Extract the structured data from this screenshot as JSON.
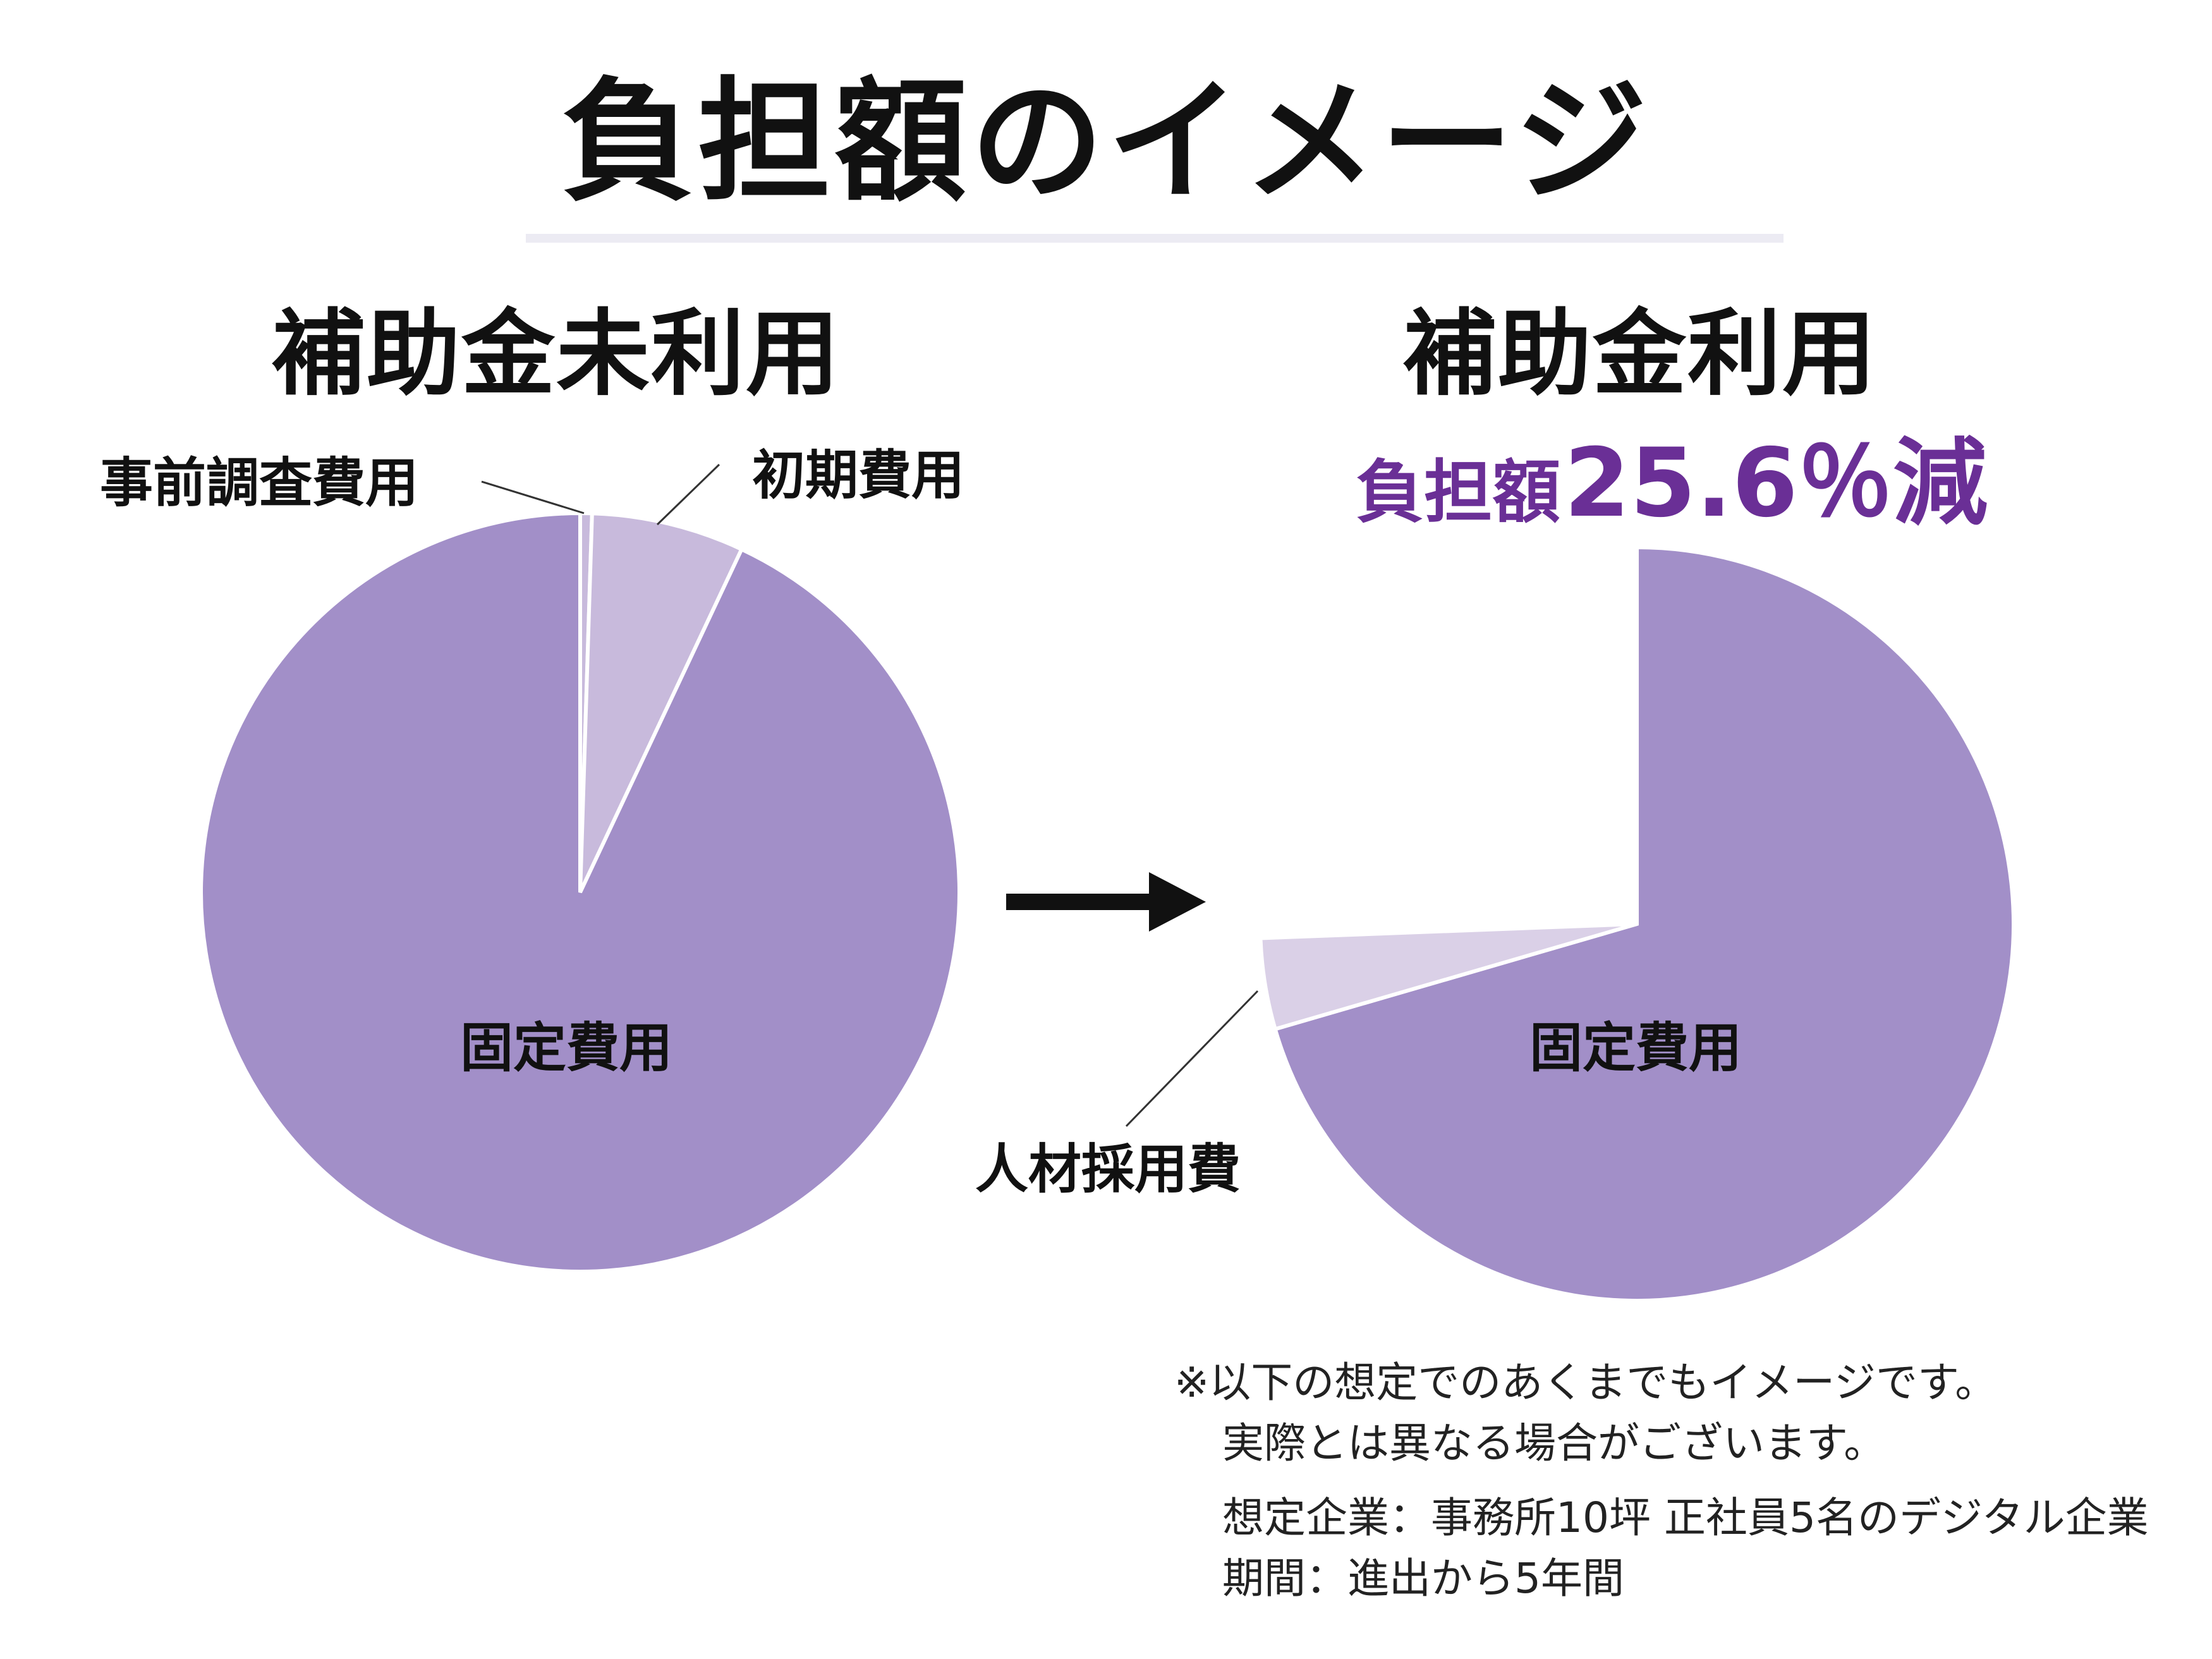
{
  "title": "負担額のイメージ",
  "chart_data": [
    {
      "type": "pie",
      "title": "補助金未利用",
      "slices": [
        {
          "label": "事前調査費用",
          "value": 0.5,
          "color": "#c8badc"
        },
        {
          "label": "初期費用",
          "value": 6.5,
          "color": "#c8badc"
        },
        {
          "label": "固定費用",
          "value": 93.0,
          "color": "#a28fc8"
        }
      ]
    },
    {
      "type": "pie",
      "title": "補助金利用",
      "subtitle_prefix": "負担額",
      "subtitle_value": "25.6％減",
      "slices": [
        {
          "label": "固定費用",
          "value": 70.5,
          "color": "#a28fc8"
        },
        {
          "label": "人材採用費",
          "value": 3.9,
          "color": "#dad0e7"
        },
        {
          "label": "",
          "value": 25.6,
          "color": "none"
        }
      ]
    }
  ],
  "notes": {
    "line1": "※以下の想定でのあくまでもイメージです。",
    "line2": "実際とは異なる場合がございます。",
    "line3": "想定企業：事務所10坪 正社員5名のデジタル企業",
    "line4": "期間：進出から5年間"
  },
  "colors": {
    "fixed": "#a28fc8",
    "light": "#c8badc",
    "lighter": "#dad0e7",
    "accent": "#6a2f96"
  }
}
